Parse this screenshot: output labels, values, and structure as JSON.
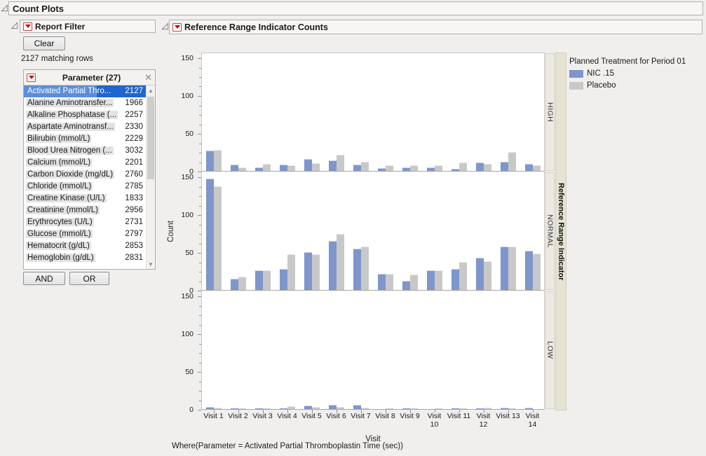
{
  "window": {
    "title": "Count Plots"
  },
  "filter": {
    "title": "Report Filter",
    "clear_label": "Clear",
    "matching_rows": "2127 matching rows",
    "list_title": "Parameter (27)",
    "and_label": "AND",
    "or_label": "OR",
    "max_count": 3032,
    "items": [
      {
        "label": "Activated Partial Thro...",
        "count": 2127,
        "selected": true
      },
      {
        "label": "Alanine Aminotransfer...",
        "count": 1966
      },
      {
        "label": "Alkaline Phosphatase (...",
        "count": 2257
      },
      {
        "label": "Aspartate Aminotransf...",
        "count": 2330
      },
      {
        "label": "Bilirubin (mmol/L)",
        "count": 2229
      },
      {
        "label": "Blood Urea Nitrogen (...",
        "count": 3032
      },
      {
        "label": "Calcium (mmol/L)",
        "count": 2201
      },
      {
        "label": "Carbon Dioxide (mg/dL)",
        "count": 2760
      },
      {
        "label": "Chloride (mmol/L)",
        "count": 2785
      },
      {
        "label": "Creatine Kinase (U/L)",
        "count": 1833
      },
      {
        "label": "Creatinine (mmol/L)",
        "count": 2956
      },
      {
        "label": "Erythrocytes (U/L)",
        "count": 2731
      },
      {
        "label": "Glucose (mmol/L)",
        "count": 2797
      },
      {
        "label": "Hematocrit (g/dL)",
        "count": 2853
      },
      {
        "label": "Hemoglobin (g/dL)",
        "count": 2831
      }
    ]
  },
  "report": {
    "title": "Reference Range Indicator Counts",
    "footer": "Where(Parameter = Activated Partial Thromboplastin Time (sec))"
  },
  "chart_data": {
    "type": "bar",
    "title": "Reference Range Indicator Counts",
    "xlabel": "Visit",
    "ylabel": "Count",
    "ylim": [
      0,
      157
    ],
    "yticks": [
      0,
      50,
      100,
      150
    ],
    "grid": false,
    "panel_axis_label": "Reference Range Indicator",
    "categories": [
      "Visit 1",
      "Visit 2",
      "Visit 3",
      "Visit 4",
      "Visit 5",
      "Visit 6",
      "Visit 7",
      "Visit 8",
      "Visit 9",
      "Visit\n10",
      "Visit 11",
      "Visit\n12",
      "Visit 13",
      "Visit\n14"
    ],
    "panels": [
      {
        "name": "HIGH",
        "series": [
          {
            "name": "NIC .15",
            "values": [
              27,
              8,
              5,
              8,
              16,
              14,
              8,
              4,
              5,
              5,
              3,
              11,
              12,
              9
            ]
          },
          {
            "name": "Placebo",
            "values": [
              28,
              5,
              9,
              7,
              10,
              21,
              12,
              7,
              7,
              7,
              11,
              9,
              25,
              7
            ]
          }
        ]
      },
      {
        "name": "NORMAL",
        "series": [
          {
            "name": "NIC .15",
            "values": [
              147,
              15,
              26,
              28,
              50,
              65,
              55,
              21,
              12,
              26,
              28,
              43,
              57,
              52
            ]
          },
          {
            "name": "Placebo",
            "values": [
              137,
              18,
              26,
              47,
              47,
              74,
              57,
              21,
              20,
              26,
              37,
              38,
              57,
              48
            ]
          }
        ]
      },
      {
        "name": "LOW",
        "series": [
          {
            "name": "NIC .15",
            "values": [
              3,
              1,
              1,
              1,
              5,
              6,
              6,
              0,
              1,
              0,
              1,
              1,
              2,
              2
            ]
          },
          {
            "name": "Placebo",
            "values": [
              2,
              1,
              1,
              4,
              3,
              3,
              2,
              1,
              1,
              1,
              1,
              2,
              1,
              0
            ]
          }
        ]
      }
    ],
    "legend": {
      "title": "Planned Treatment for Period 01",
      "position": "right",
      "entries": [
        {
          "label": "NIC .15",
          "color": "#7e96cb"
        },
        {
          "label": "Placebo",
          "color": "#c8c8c8"
        }
      ]
    },
    "colors": {
      "selected_row": "#2066cf",
      "selected_row_light": "#5a8edb",
      "axis": "#8f8f8f"
    }
  }
}
